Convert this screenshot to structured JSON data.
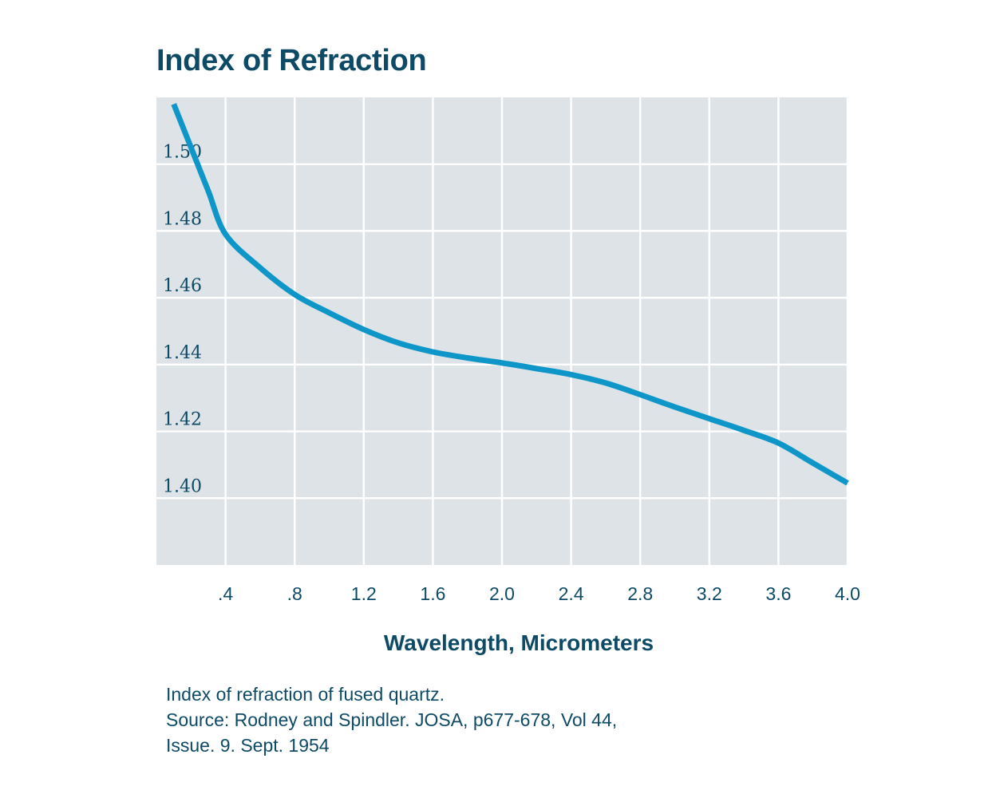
{
  "chart_data": {
    "type": "line",
    "title": "Index of Refraction",
    "xlabel": "Wavelength, Micrometers",
    "ylabel": "",
    "x_ticks": [
      {
        "value": 0.4,
        "label": ".4"
      },
      {
        "value": 0.8,
        "label": ".8"
      },
      {
        "value": 1.2,
        "label": "1.2"
      },
      {
        "value": 1.6,
        "label": "1.6"
      },
      {
        "value": 2.0,
        "label": "2.0"
      },
      {
        "value": 2.4,
        "label": "2.4"
      },
      {
        "value": 2.8,
        "label": "2.8"
      },
      {
        "value": 3.2,
        "label": "3.2"
      },
      {
        "value": 3.6,
        "label": "3.6"
      },
      {
        "value": 4.0,
        "label": "4.0"
      }
    ],
    "y_ticks": [
      {
        "value": 1.5,
        "label": "1.50"
      },
      {
        "value": 1.48,
        "label": "1.48"
      },
      {
        "value": 1.46,
        "label": "1.46"
      },
      {
        "value": 1.44,
        "label": "1.44"
      },
      {
        "value": 1.42,
        "label": "1.42"
      },
      {
        "value": 1.4,
        "label": "1.40"
      }
    ],
    "xlim": [
      0,
      4.0
    ],
    "ylim": [
      1.38,
      1.52
    ],
    "grid": true,
    "line_color": "#0f96c8",
    "plot_background": "#dde3e6",
    "grid_color": "#ffffff",
    "series": [
      {
        "x": [
          0.1,
          0.2,
          0.3,
          0.4,
          0.6,
          0.8,
          1.0,
          1.2,
          1.4,
          1.6,
          1.8,
          2.0,
          2.2,
          2.4,
          2.6,
          2.8,
          3.0,
          3.2,
          3.4,
          3.6,
          3.8,
          4.0
        ],
        "y": [
          1.518,
          1.505,
          1.492,
          1.479,
          1.469,
          1.461,
          1.4555,
          1.4505,
          1.4465,
          1.4438,
          1.442,
          1.4405,
          1.4388,
          1.437,
          1.4345,
          1.431,
          1.4273,
          1.4238,
          1.4203,
          1.4165,
          1.4105,
          1.4045
        ]
      }
    ]
  },
  "caption": {
    "line1": "Index of refraction of fused quartz.",
    "line2": "Source: Rodney and Spindler. JOSA, p677-678, Vol 44,",
    "line3": "Issue. 9. Sept. 1954"
  }
}
